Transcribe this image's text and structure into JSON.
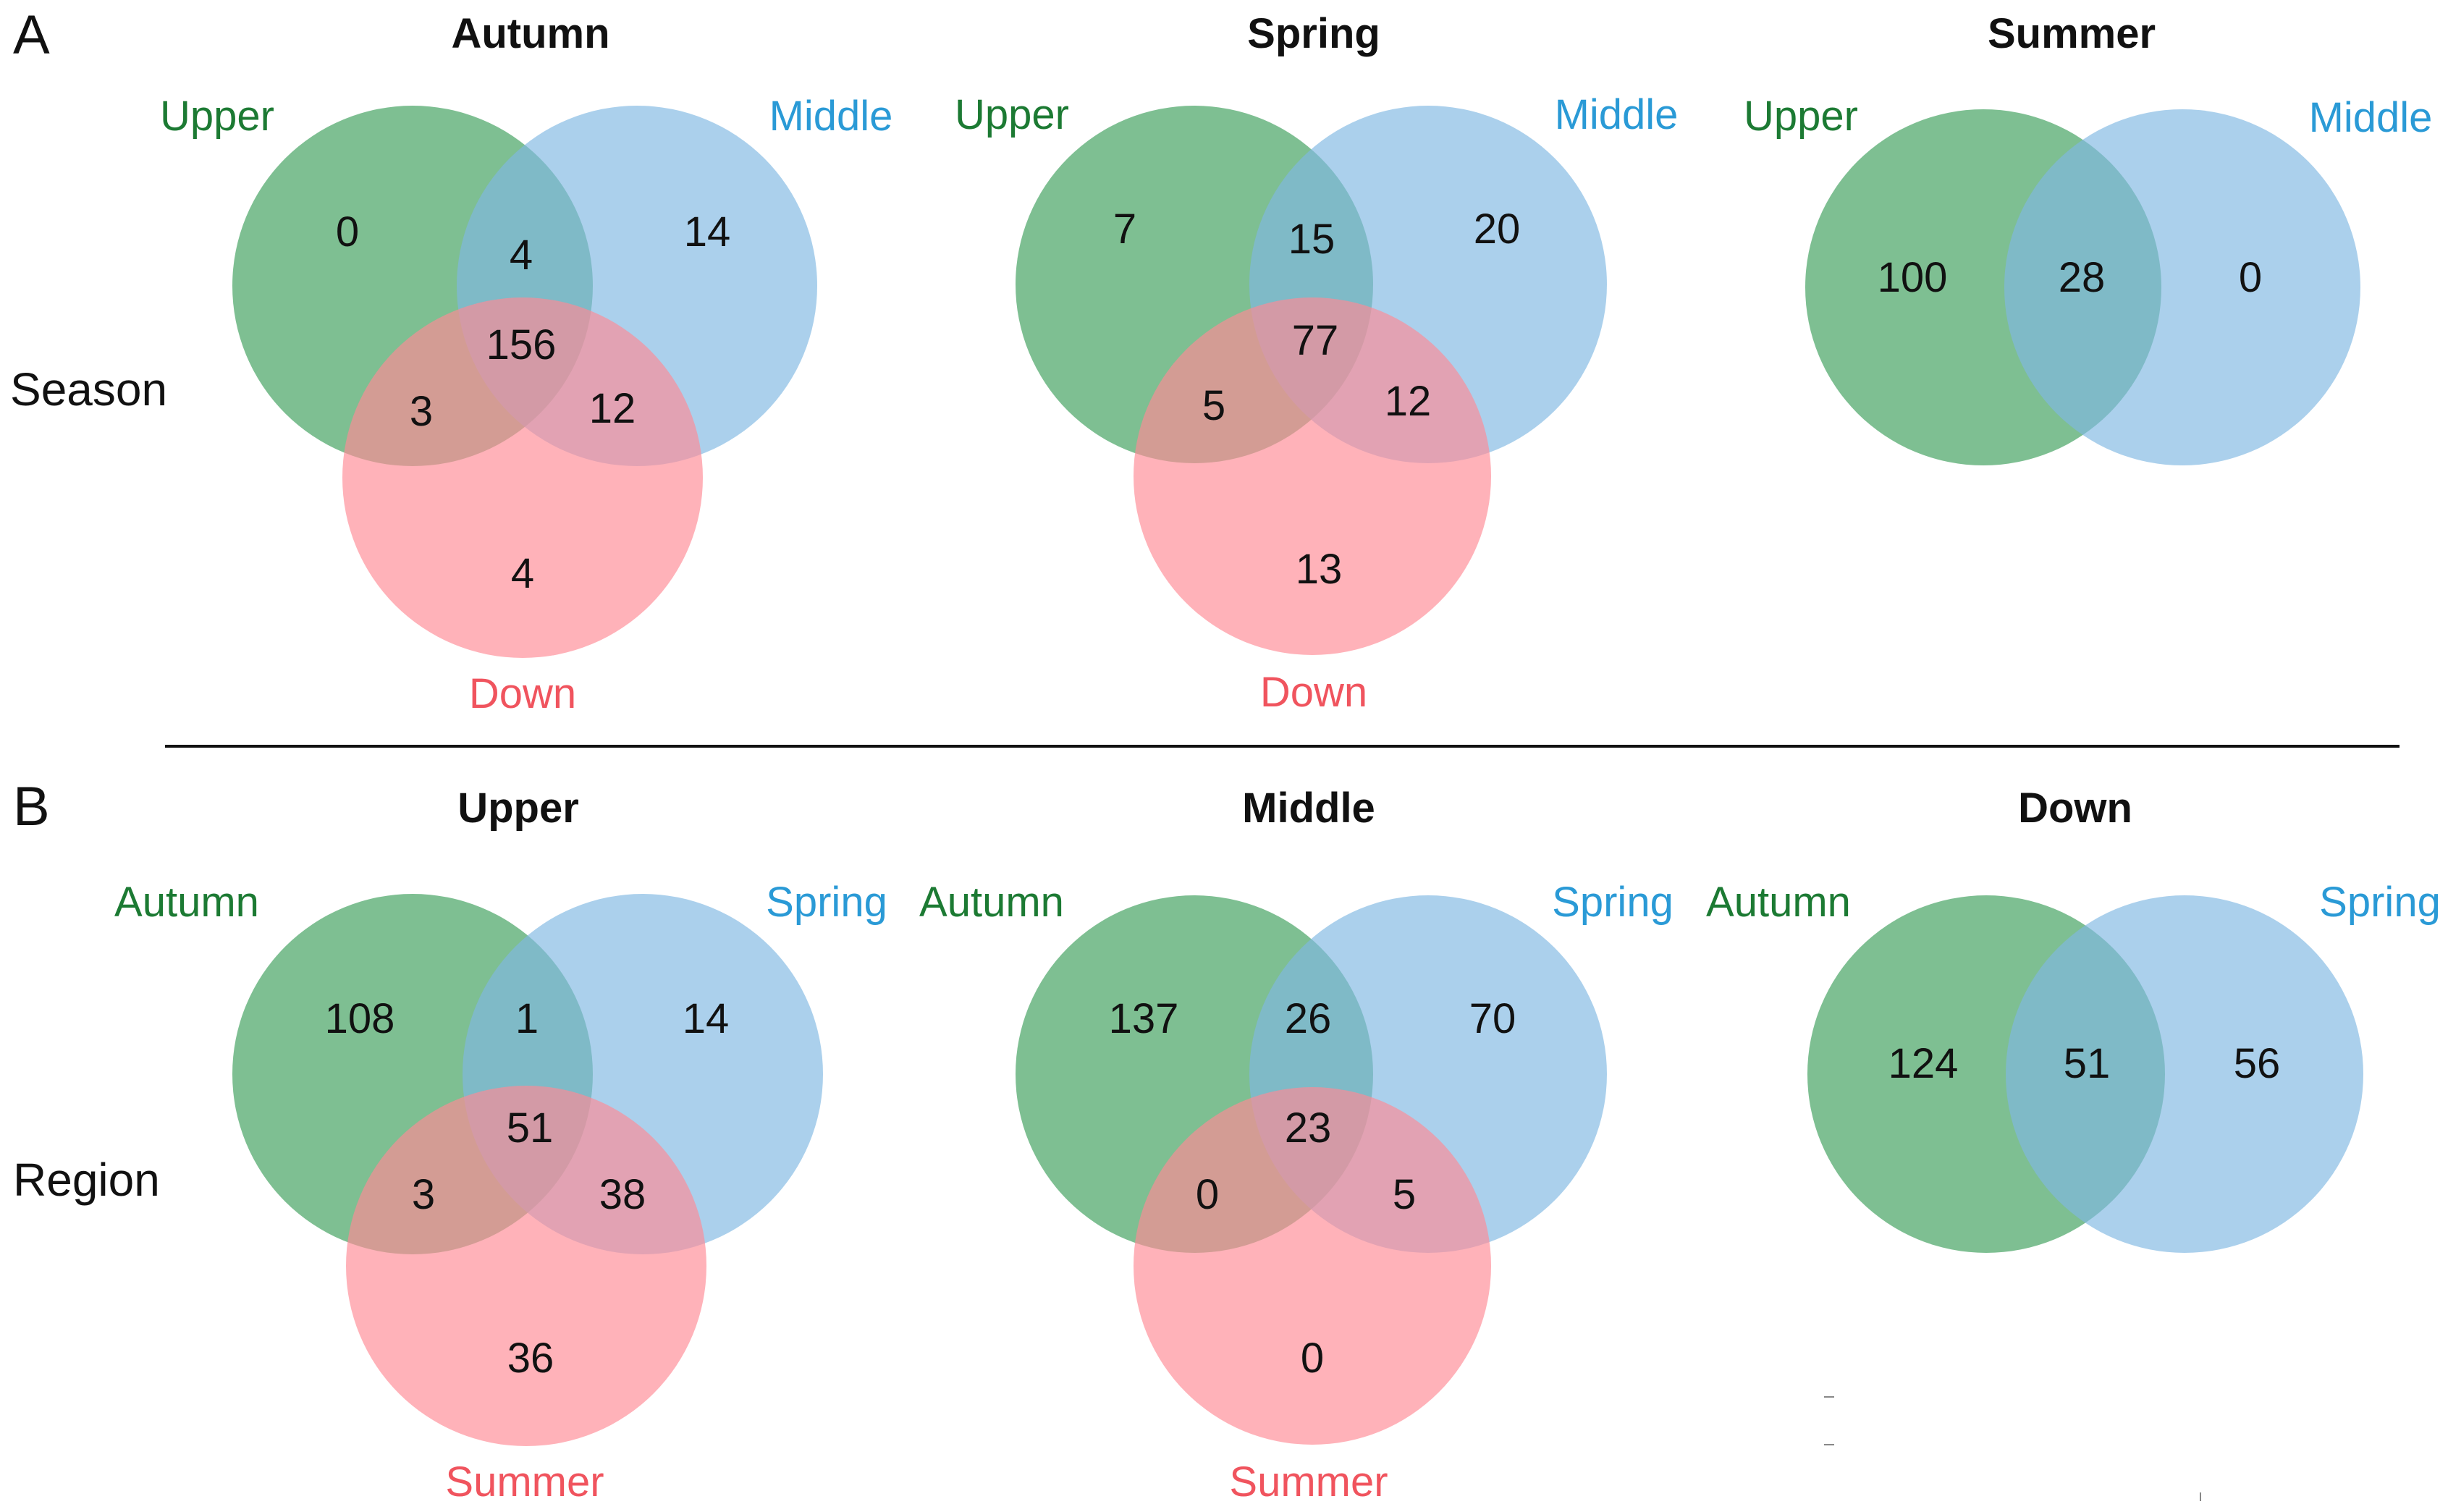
{
  "panels": [
    {
      "letter": "A",
      "row_label": "Season"
    },
    {
      "letter": "B",
      "row_label": "Region"
    }
  ],
  "colors": {
    "green": "#3b9e5a",
    "blue": "#7fb8e2",
    "red": "#ff8a94",
    "green_text": "#1c7a33",
    "blue_text": "#2a9ad6",
    "red_text": "#f0545e"
  },
  "diagrams": [
    {
      "title": "Autumn",
      "sets": [
        "Upper",
        "Middle",
        "Down"
      ],
      "counts": {
        "a": "0",
        "b": "14",
        "c": "4",
        "ab": "4",
        "ac": "3",
        "bc": "12",
        "abc": "156"
      }
    },
    {
      "title": "Spring",
      "sets": [
        "Upper",
        "Middle",
        "Down"
      ],
      "counts": {
        "a": "7",
        "b": "20",
        "c": "13",
        "ab": "15",
        "ac": "5",
        "bc": "12",
        "abc": "77"
      }
    },
    {
      "title": "Summer",
      "sets": [
        "Upper",
        "Middle"
      ],
      "counts": {
        "a": "100",
        "b": "0",
        "ab": "28"
      }
    },
    {
      "title": "Upper",
      "sets": [
        "Autumn",
        "Spring",
        "Summer"
      ],
      "counts": {
        "a": "108",
        "b": "14",
        "c": "36",
        "ab": "1",
        "ac": "3",
        "bc": "38",
        "abc": "51"
      }
    },
    {
      "title": "Middle",
      "sets": [
        "Autumn",
        "Spring",
        "Summer"
      ],
      "counts": {
        "a": "137",
        "b": "70",
        "c": "0",
        "ab": "26",
        "ac": "0",
        "bc": "5",
        "abc": "23"
      }
    },
    {
      "title": "Down",
      "sets": [
        "Autumn",
        "Spring"
      ],
      "counts": {
        "a": "124",
        "b": "56",
        "ab": "51"
      }
    }
  ]
}
